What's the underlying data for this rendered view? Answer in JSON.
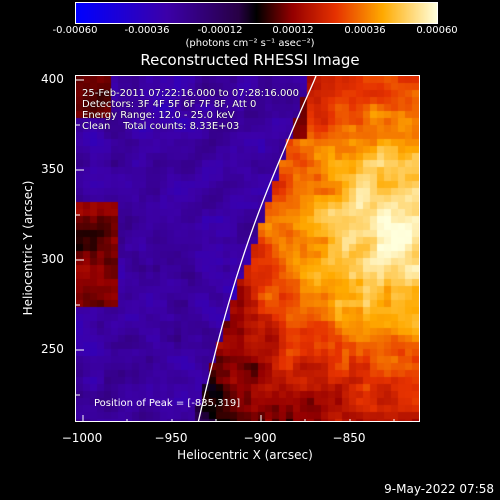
{
  "colorbar": {
    "tick_labels": [
      "-0.00060",
      "-0.00036",
      "-0.00012",
      "0.00012",
      "0.00036",
      "0.00060"
    ],
    "units": "(photons cm⁻² s⁻¹ asec⁻²)",
    "range": [
      -0.0006,
      0.0006
    ]
  },
  "title": "Reconstructed RHESSI Image",
  "info": {
    "line1": "25-Feb-2011 07:22:16.000 to 07:28:16.000",
    "line2": "Detectors: 3F 4F 5F 6F 7F 8F, Att 0",
    "line3": "Energy Range: 12.0 - 25.0 keV",
    "line4": "Clean    Total counts: 8.33E+03"
  },
  "peak_label": "Position of Peak = [-835,319]",
  "axes": {
    "x_label": "Heliocentric X (arcsec)",
    "y_label": "Heliocentric Y (arcsec)",
    "x_ticks": [
      {
        "value": -1000,
        "label": "−1000"
      },
      {
        "value": -950,
        "label": "−950"
      },
      {
        "value": -900,
        "label": "−900"
      },
      {
        "value": -850,
        "label": "−850"
      }
    ],
    "y_ticks": [
      {
        "value": 400,
        "label": "400"
      },
      {
        "value": 350,
        "label": "350"
      },
      {
        "value": 300,
        "label": "300"
      },
      {
        "value": 250,
        "label": "250"
      }
    ],
    "x_range": [
      -1008,
      -815
    ],
    "y_range": [
      208,
      402
    ]
  },
  "timestamp": "9-May-2022 07:58"
}
